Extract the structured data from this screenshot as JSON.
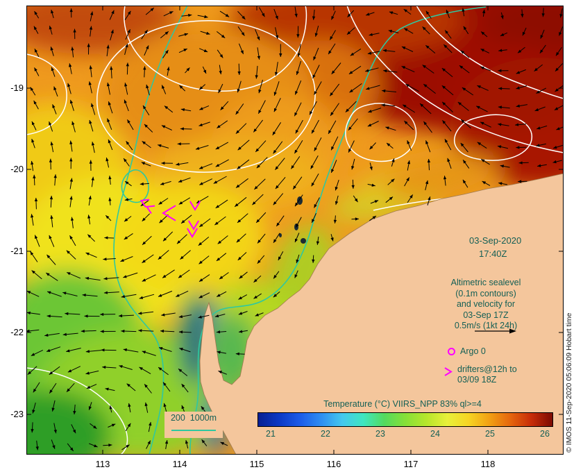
{
  "figure": {
    "bg_color": "#ffffff",
    "land_color": "#f4c69c",
    "annotation_color": "#135f55",
    "bathy_color": "#2ec8a0",
    "contour_color": "#ffffff",
    "marker_magenta": "#ff00ff",
    "credit": "© IMOS 11-Sep-2020 05:06:09 Hobart time"
  },
  "axes": {
    "x_ticks": [
      "113",
      "114",
      "115",
      "116",
      "117",
      "118"
    ],
    "y_ticks": [
      "-19",
      "-20",
      "-21",
      "-22",
      "-23"
    ]
  },
  "annotations": {
    "datetime_line1": "03-Sep-2020",
    "datetime_line2": "17:40Z",
    "alt_line1": "Altimetric sealevel",
    "alt_line2": "(0.1m contours)",
    "alt_line3": "and velocity for",
    "alt_line4": "03-Sep 17Z",
    "alt_line5": "0.5m/s (1kt 24h)",
    "argo_label": "Argo 0",
    "drifters_line1": "drifters@12h to",
    "drifters_line2": "03/09 18Z",
    "bathy_legend": "200  1000m"
  },
  "colorbar": {
    "title": "Temperature (°C) VIIRS_NPP 83% ql>=4",
    "ticks": [
      "21",
      "22",
      "23",
      "24",
      "25",
      "26"
    ],
    "colors": [
      "#071f92",
      "#0b38c4",
      "#1c5ce8",
      "#2f8ef2",
      "#45c8ee",
      "#3fe6c0",
      "#54da5e",
      "#86e038",
      "#b6e62c",
      "#e8f03a",
      "#f6d524",
      "#f2a014",
      "#e5660e",
      "#c72c08",
      "#7c0b03"
    ]
  },
  "chart_data": {
    "type": "heatmap",
    "title": "Temperature (°C) VIIRS_NPP 83% ql>=4",
    "x_ticks": [
      113,
      114,
      115,
      116,
      117,
      118
    ],
    "y_ticks": [
      -19,
      -20,
      -21,
      -22,
      -23
    ],
    "colorbar_range": [
      21,
      26
    ],
    "colorbar_ticks": [
      21,
      22,
      23,
      24,
      25,
      26
    ],
    "overlays": [
      "altimetric sealevel contours (0.1m) with velocity vectors (0.5m/s = 1kt 24h)",
      "bathymetry contours 200m and 1000m",
      "Argo float positions (count 0)",
      "drifters at 12h intervals to 03/09 18Z"
    ]
  }
}
